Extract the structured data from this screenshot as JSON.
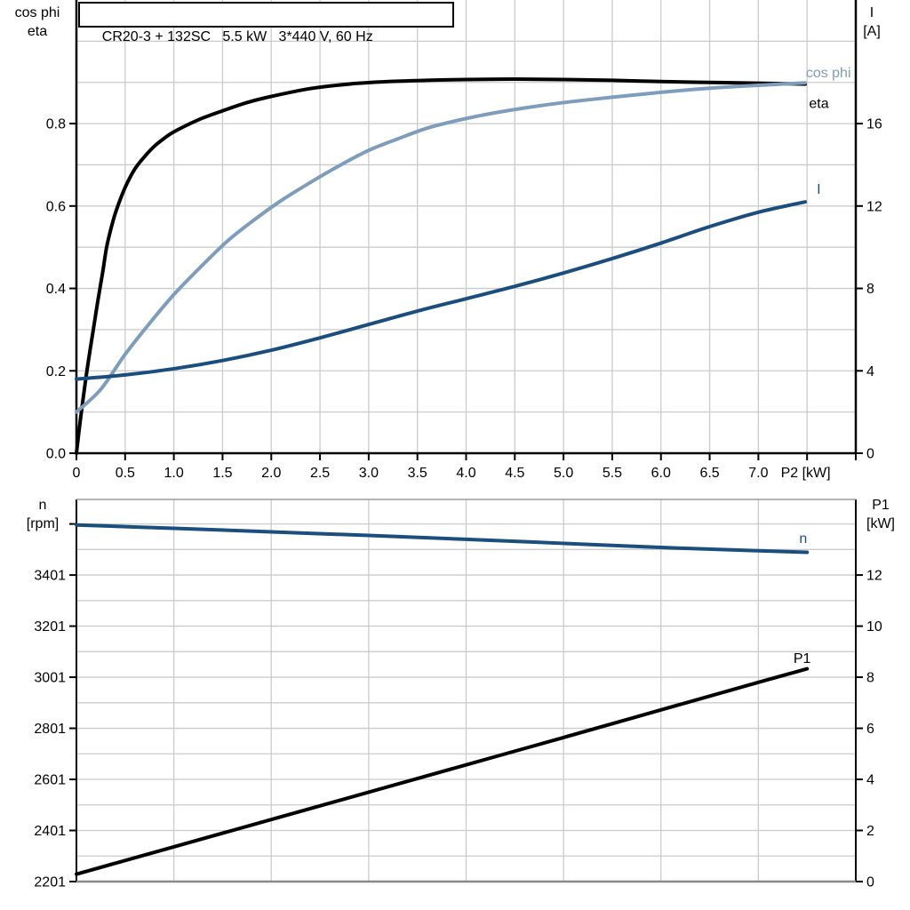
{
  "colors": {
    "black": "#000000",
    "dark_blue": "#1a4e7e",
    "light_blue": "#7e9cbc",
    "grid": "#cbcbcb",
    "border_gray_top": "#9b9b9b",
    "border_gray_bottom": "#8a8a8a"
  },
  "chart_data": [
    {
      "type": "line",
      "title": "CR20-3 + 132SC   5.5 kW   3*440 V, 60 Hz",
      "x_axis": {
        "unit_label": "P2 [kW]",
        "unit_label_x": 7.23,
        "min": 0,
        "max": 8,
        "tick_values": [
          0,
          0.5,
          1,
          1.5,
          2,
          2.5,
          3,
          3.5,
          4,
          4.5,
          5,
          5.5,
          6,
          6.5,
          7,
          7.5,
          8
        ],
        "tick_labels": [
          "0",
          "0.5",
          "1.0",
          "1.5",
          "2.0",
          "2.5",
          "3.0",
          "3.5",
          "4.0",
          "4.5",
          "5.0",
          "5.5",
          "6.0",
          "6.5",
          "7.0",
          "",
          ""
        ]
      },
      "y_left": {
        "axis_title_lines": [
          "cos phi",
          "eta"
        ],
        "min": 0,
        "max": 1.1,
        "tick_values": [
          0,
          0.2,
          0.4,
          0.6,
          0.8
        ],
        "tick_labels": [
          "0.0",
          "0.2",
          "0.4",
          "0.6",
          "0.8"
        ]
      },
      "y_right": {
        "axis_title_lines": [
          "I",
          "[A]"
        ],
        "min": 0,
        "max": 22,
        "tick_values": [
          0,
          4,
          8,
          12,
          16
        ],
        "tick_labels": [
          "0",
          "4",
          "8",
          "12",
          "16"
        ]
      },
      "grid": {
        "x_step": 0.5,
        "y_step": 0.1
      },
      "series": [
        {
          "id": "eta",
          "name": "eta",
          "axis": "left",
          "color": "#000000",
          "width": 4,
          "points": [
            [
              0,
              0
            ],
            [
              0.04,
              0.08
            ],
            [
              0.09,
              0.17
            ],
            [
              0.13,
              0.235
            ],
            [
              0.18,
              0.31
            ],
            [
              0.22,
              0.37
            ],
            [
              0.27,
              0.44
            ],
            [
              0.31,
              0.5
            ],
            [
              0.36,
              0.55
            ],
            [
              0.41,
              0.59
            ],
            [
              0.5,
              0.645
            ],
            [
              0.6,
              0.69
            ],
            [
              0.7,
              0.72
            ],
            [
              0.8,
              0.745
            ],
            [
              0.9,
              0.764
            ],
            [
              1.0,
              0.78
            ],
            [
              1.25,
              0.809
            ],
            [
              1.5,
              0.831
            ],
            [
              1.75,
              0.851
            ],
            [
              2.0,
              0.866
            ],
            [
              2.4,
              0.885
            ],
            [
              2.8,
              0.896
            ],
            [
              3.2,
              0.902
            ],
            [
              3.6,
              0.905
            ],
            [
              4.0,
              0.907
            ],
            [
              4.5,
              0.908
            ],
            [
              5.0,
              0.907
            ],
            [
              5.5,
              0.905
            ],
            [
              6.0,
              0.902
            ],
            [
              6.5,
              0.9
            ],
            [
              7.0,
              0.898
            ],
            [
              7.48,
              0.896
            ]
          ]
        },
        {
          "id": "cos_phi",
          "name": "cos phi",
          "axis": "left",
          "color": "#7e9cbc",
          "width": 4,
          "points": [
            [
              0,
              0.1
            ],
            [
              0.25,
              0.155
            ],
            [
              0.5,
              0.24
            ],
            [
              0.75,
              0.315
            ],
            [
              1.0,
              0.385
            ],
            [
              1.3,
              0.458
            ],
            [
              1.55,
              0.515
            ],
            [
              1.8,
              0.562
            ],
            [
              2.1,
              0.613
            ],
            [
              2.4,
              0.657
            ],
            [
              2.7,
              0.698
            ],
            [
              3.0,
              0.735
            ],
            [
              3.3,
              0.763
            ],
            [
              3.6,
              0.789
            ],
            [
              3.9,
              0.807
            ],
            [
              4.2,
              0.822
            ],
            [
              4.6,
              0.838
            ],
            [
              5.0,
              0.851
            ],
            [
              5.5,
              0.864
            ],
            [
              6.0,
              0.876
            ],
            [
              6.5,
              0.886
            ],
            [
              7.0,
              0.893
            ],
            [
              7.48,
              0.899
            ]
          ]
        },
        {
          "id": "I",
          "name": "I",
          "axis": "right",
          "color": "#1a4e7e",
          "width": 4,
          "points": [
            [
              0,
              3.6
            ],
            [
              0.5,
              3.8
            ],
            [
              1.0,
              4.1
            ],
            [
              1.5,
              4.5
            ],
            [
              2.0,
              5.0
            ],
            [
              2.5,
              5.6
            ],
            [
              3.0,
              6.25
            ],
            [
              3.5,
              6.9
            ],
            [
              4.0,
              7.5
            ],
            [
              4.5,
              8.1
            ],
            [
              5.0,
              8.75
            ],
            [
              5.5,
              9.45
            ],
            [
              6.0,
              10.2
            ],
            [
              6.5,
              11.0
            ],
            [
              7.0,
              11.7
            ],
            [
              7.48,
              12.2
            ]
          ]
        }
      ],
      "annotations": [
        {
          "id": "cos_phi",
          "text": "cos phi",
          "color": "#7e9cbc",
          "axis": "left",
          "anchor": "end",
          "x": 7.95,
          "v": 0.912
        },
        {
          "id": "eta",
          "text": "eta",
          "color": "#000000",
          "axis": "left",
          "anchor": "start",
          "x": 7.52,
          "v": 0.838
        },
        {
          "id": "I",
          "text": "I",
          "color": "#1a4e7e",
          "axis": "right",
          "anchor": "start",
          "x": 7.6,
          "v": 12.6
        }
      ]
    },
    {
      "type": "line",
      "title": "",
      "x_axis": {
        "unit_label": "",
        "min": 0,
        "max": 8,
        "tick_values": [],
        "tick_labels": []
      },
      "y_left": {
        "axis_title_lines": [
          "n",
          "[rpm]"
        ],
        "min": 2201,
        "max": 3697,
        "tick_values": [
          2201,
          2401,
          2601,
          2801,
          3001,
          3201,
          3401,
          3601
        ],
        "tick_labels": [
          "2201",
          "2401",
          "2601",
          "2801",
          "3001",
          "3201",
          "3401",
          ""
        ]
      },
      "y_right": {
        "axis_title_lines": [
          "P1",
          "[kW]"
        ],
        "min": 0,
        "max": 14.96,
        "tick_values": [
          0,
          2,
          4,
          6,
          8,
          10,
          12
        ],
        "tick_labels": [
          "0",
          "2",
          "4",
          "6",
          "8",
          "10",
          "12"
        ]
      },
      "grid": {
        "x_step": 1,
        "y_step": 100
      },
      "series": [
        {
          "id": "n",
          "name": "n",
          "axis": "left",
          "color": "#1a4e7e",
          "width": 4,
          "points": [
            [
              0,
              3597
            ],
            [
              1,
              3584
            ],
            [
              2,
              3570
            ],
            [
              3,
              3556
            ],
            [
              4,
              3541
            ],
            [
              5,
              3525
            ],
            [
              6,
              3509
            ],
            [
              7,
              3496
            ],
            [
              7.5,
              3490
            ]
          ]
        },
        {
          "id": "P1",
          "name": "P1",
          "axis": "right",
          "color": "#000000",
          "width": 4,
          "points": [
            [
              0,
              0.29
            ],
            [
              1,
              1.36
            ],
            [
              2,
              2.43
            ],
            [
              3,
              3.5
            ],
            [
              4,
              4.57
            ],
            [
              5,
              5.64
            ],
            [
              6,
              6.72
            ],
            [
              7,
              7.8
            ],
            [
              7.5,
              8.33
            ]
          ]
        }
      ],
      "annotations": [
        {
          "id": "n",
          "text": "n",
          "color": "#1a4e7e",
          "axis": "left",
          "anchor": "start",
          "x": 7.42,
          "v": 3527
        },
        {
          "id": "P1",
          "text": "P1",
          "color": "#000000",
          "axis": "right",
          "anchor": "start",
          "x": 7.36,
          "v": 8.56
        }
      ]
    }
  ]
}
